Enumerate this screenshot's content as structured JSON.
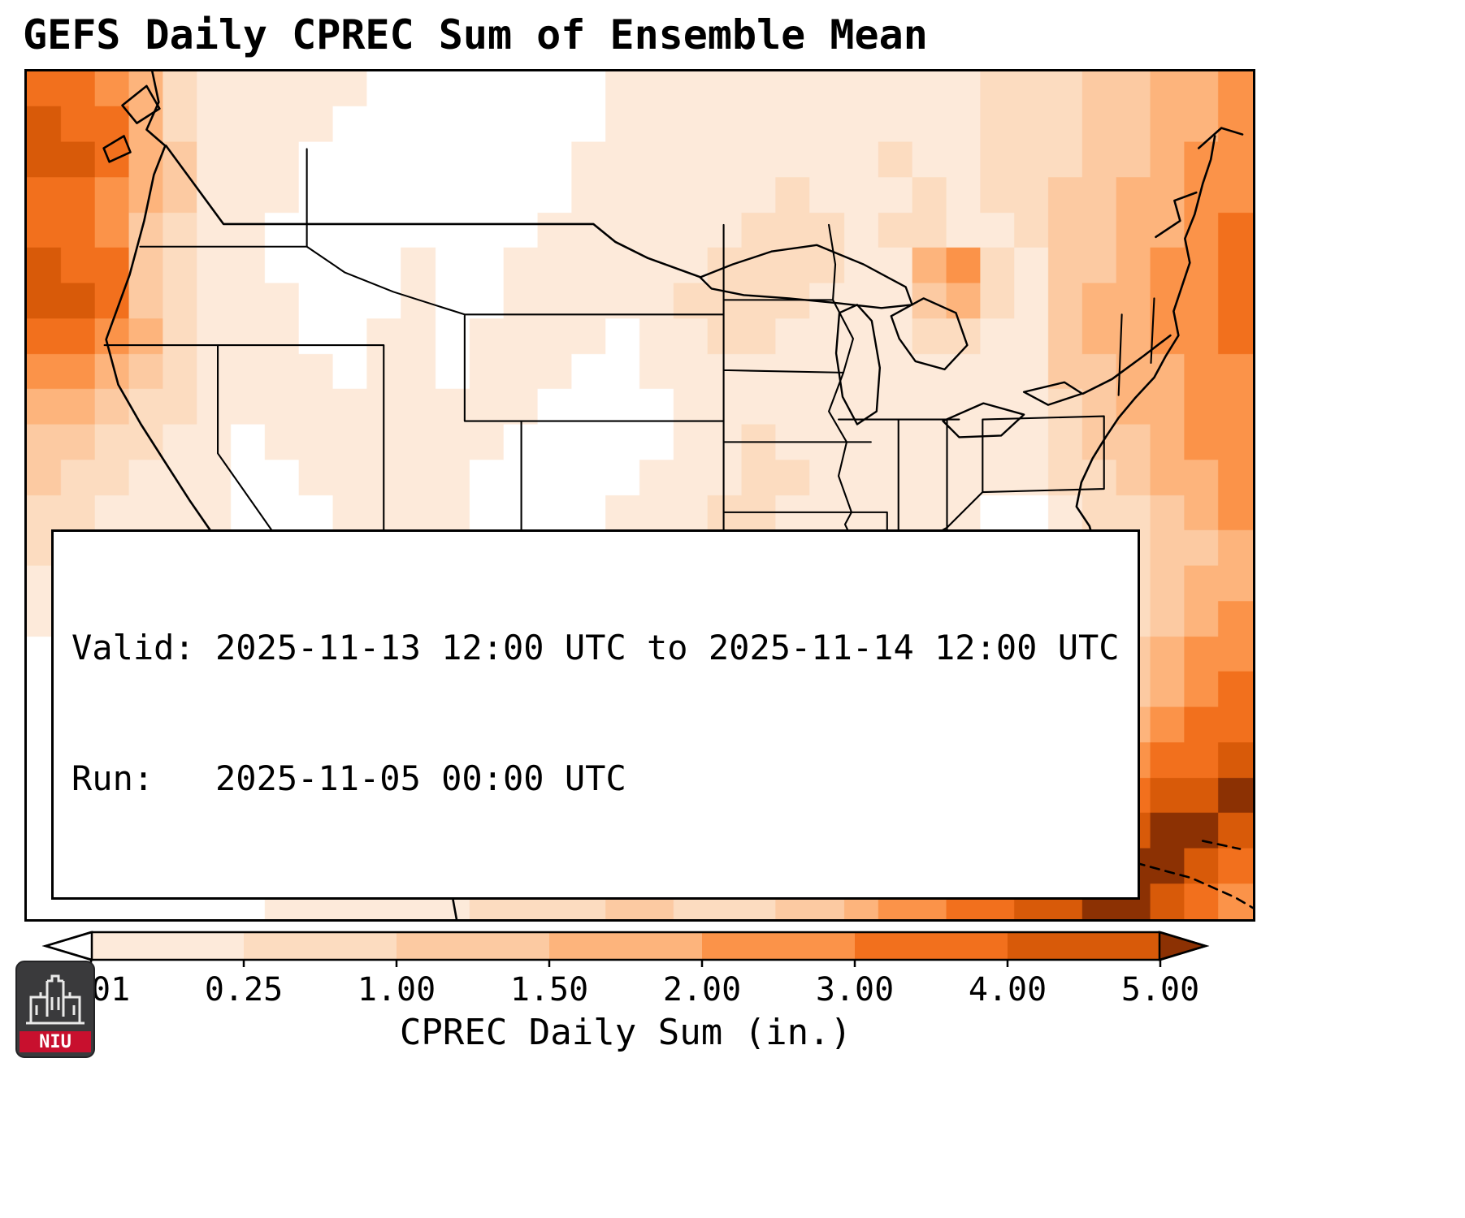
{
  "title": "GEFS Daily CPREC Sum of Ensemble Mean",
  "info_box": {
    "valid_line": "Valid: 2025-11-13 12:00 UTC to 2025-11-14 12:00 UTC",
    "run_line": "Run:   2025-11-05 00:00 UTC"
  },
  "colorbar": {
    "label": "CPREC Daily Sum (in.)",
    "tick_labels": [
      "0.01",
      "0.25",
      "1.00",
      "1.50",
      "2.00",
      "3.00",
      "4.00",
      "5.00"
    ],
    "segment_colors": [
      "#fdeada",
      "#fcdcc0",
      "#fccaa2",
      "#fdb47c",
      "#fb9349",
      "#f2701d",
      "#d85a09"
    ],
    "under_arrow_color": "#ffffff",
    "over_arrow_color": "#8c3103"
  },
  "logo": {
    "text": "NIU",
    "banner_color": "#c8102e",
    "shield_color": "#3a3a3c"
  },
  "chart_data": {
    "type": "heatmap",
    "title": "GEFS Daily CPREC Sum of Ensemble Mean",
    "variable": "CPREC Daily Sum (in.)",
    "valid": "2025-11-13 12:00 UTC to 2025-11-14 12:00 UTC",
    "run": "2025-11-05 00:00 UTC",
    "color_boundaries_in": [
      0.01,
      0.25,
      1.0,
      1.5,
      2.0,
      3.0,
      4.0,
      5.0
    ],
    "palette": [
      "#ffffff",
      "#fdeada",
      "#fcdcc0",
      "#fccaa2",
      "#fdb47c",
      "#fb9349",
      "#f2701d",
      "#d85a09",
      "#8c3103"
    ],
    "grid_legend": "each digit 0-8 indexes palette; rows north to south, 36 columns west to east",
    "grid_rows": [
      "665421111100000001111111111122233445",
      "766421111000000001111111111122233445",
      "776431110000000011111111121122233455",
      "665431110000000011111121112122334455",
      "665321100000000111111222122112334456",
      "766321100001001111112222114521334556",
      "776321110001001111122221113421344556",
      "665421110011011110112211112211344556",
      "554321111011011100111111111111334455",
      "443221111111111000011111111111234455",
      "332211011111110000011211111111233455",
      "322111001111100000111221111111223445",
      "221111000111100001112211111100122345",
      "211111000011000011111111111000112334",
      "111110000001000111011111110000112344",
      "111100000000001111011110100001122345",
      "011100000000011110111100000011123455",
      "011110100000011100111110001111223456",
      "001111110000111001122110011122234566",
      "001111111000011012234210111223345667",
      "000111111100011123454321122334456778",
      "000011111110111234343222233445567887",
      "000001111111112233332223344556678876",
      "000000011111122223322233455667788765"
    ]
  }
}
